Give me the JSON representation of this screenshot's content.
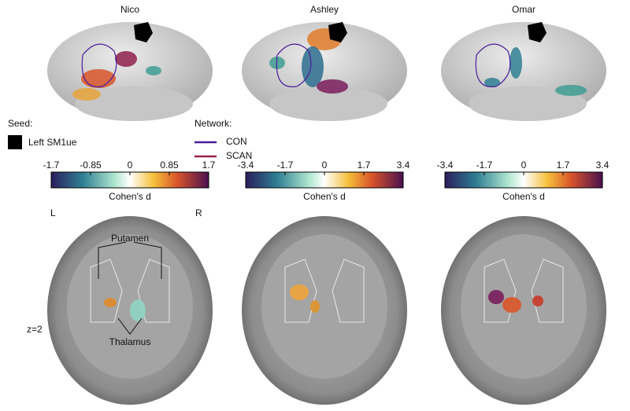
{
  "panels": [
    {
      "title": "Nico",
      "colorbar": {
        "ticks": [
          "-1.7",
          "-0.85",
          "0",
          "0.85",
          "1.7"
        ],
        "label": "Cohen's d"
      }
    },
    {
      "title": "Ashley",
      "colorbar": {
        "ticks": [
          "-3.4",
          "-1.7",
          "0",
          "1.7",
          "3.4"
        ],
        "label": "Cohen's d"
      }
    },
    {
      "title": "Omar",
      "colorbar": {
        "ticks": [
          "-3.4",
          "-1.7",
          "0",
          "1.7",
          "3.4"
        ],
        "label": "Cohen's d"
      }
    }
  ],
  "seed_legend": {
    "title": "Seed:",
    "items": [
      "Left SM1ue"
    ]
  },
  "network_legend": {
    "title": "Network:",
    "items": [
      "CON",
      "SCAN"
    ]
  },
  "annotations": {
    "left": "L",
    "right": "R",
    "putamen": "Putamen",
    "thalamus": "Thalamus",
    "slice": "z=2"
  }
}
